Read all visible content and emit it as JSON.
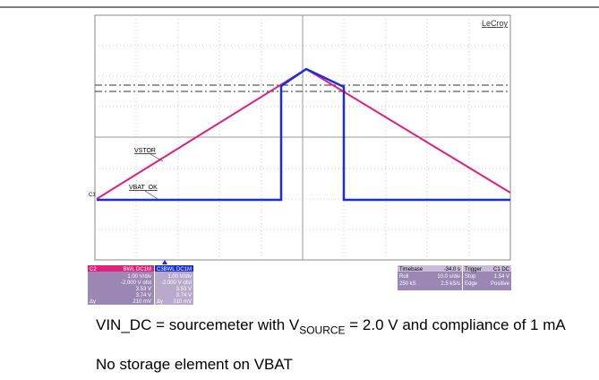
{
  "scope": {
    "brand": "LeCroy",
    "traces": {
      "vstor": "VSTOR",
      "vbat_ok": "VBAT_OK",
      "ground_marker": "C3"
    },
    "panels": [
      {
        "name": "C2",
        "mode": "BWL DC1M",
        "scale": "1.00 V/div",
        "offset": "-2.000 V ofst",
        "cursor1": "3.53 V",
        "cursor2": "3.74 V",
        "delta_label": "Δy",
        "delta": "210 mV"
      },
      {
        "name": "C3",
        "mode": "BWL DC1M",
        "scale": "1.00 V/div",
        "offset": "-2.000 V ofst",
        "cursor1": "3.53 V",
        "cursor2": "3.74 V",
        "delta_label": "Δy",
        "delta": "210 mV"
      }
    ],
    "timebase": {
      "label": "Timebase",
      "value": "-34.0 s",
      "mode": "Roll",
      "scale": "10.0 s/div",
      "samples": "250 kS",
      "rate": "2.5 kS/s"
    },
    "trigger": {
      "label": "Trigger",
      "source": "C1 DC",
      "state": "Stop",
      "level": "1.54 V",
      "type": "Edge",
      "slope": "Positive"
    }
  },
  "caption": {
    "line1_start": "VIN_DC = sourcemeter with V",
    "line1_sub": "SOURCE",
    "line1_end": " = 2.0 V and compliance of 1 mA",
    "line2": "No storage element on VBAT"
  }
}
